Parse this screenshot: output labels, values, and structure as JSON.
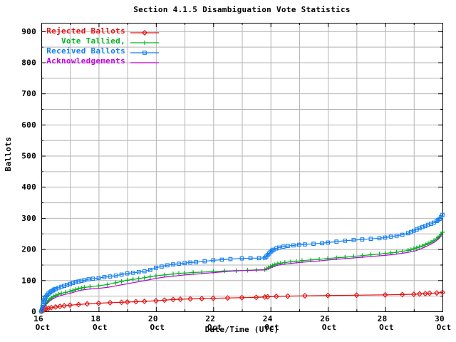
{
  "chart_data": {
    "type": "line",
    "title": "Section 4.1.5 Disambiguation Vote Statistics",
    "xlabel": "Date/Time (UTC)",
    "ylabel": "Ballots",
    "xlim": [
      16,
      30
    ],
    "ylim": [
      0,
      927
    ],
    "x_tick_month": "Oct",
    "legend_position": "top-left",
    "background": "#ffffff",
    "frame_color": "#000000",
    "grid": {
      "on": true,
      "x_step_days": 1,
      "y_step": 50,
      "color": "#b3b3b3"
    },
    "y_ticks": [
      {
        "value": 0,
        "label": "0"
      },
      {
        "value": 100,
        "label": "100"
      },
      {
        "value": 200,
        "label": "200"
      },
      {
        "value": 300,
        "label": "300"
      },
      {
        "value": 400,
        "label": "400"
      },
      {
        "value": 500,
        "label": "500"
      },
      {
        "value": 600,
        "label": "600"
      },
      {
        "value": 700,
        "label": "700"
      },
      {
        "value": 800,
        "label": "800"
      },
      {
        "value": 900,
        "label": "900"
      }
    ],
    "x_ticks": [
      {
        "value": 16,
        "day": "16",
        "month": "Oct"
      },
      {
        "value": 18,
        "day": "18",
        "month": "Oct"
      },
      {
        "value": 20,
        "day": "20",
        "month": "Oct"
      },
      {
        "value": 22,
        "day": "22",
        "month": "Oct"
      },
      {
        "value": 24,
        "day": "24",
        "month": "Oct"
      },
      {
        "value": 26,
        "day": "26",
        "month": "Oct"
      },
      {
        "value": 28,
        "day": "28",
        "month": "Oct"
      },
      {
        "value": 30,
        "day": "30",
        "month": "Oct"
      }
    ],
    "series": [
      {
        "name": "Rejected Ballots",
        "color": "#e60f0f",
        "marker": "diamond",
        "points": [
          [
            16.0,
            0
          ],
          [
            16.05,
            2
          ],
          [
            16.1,
            5
          ],
          [
            16.17,
            8
          ],
          [
            16.25,
            10
          ],
          [
            16.35,
            12
          ],
          [
            16.5,
            14
          ],
          [
            16.65,
            16
          ],
          [
            16.8,
            18
          ],
          [
            17.0,
            20
          ],
          [
            17.3,
            22
          ],
          [
            17.6,
            24
          ],
          [
            18.0,
            26
          ],
          [
            18.4,
            28
          ],
          [
            18.8,
            29
          ],
          [
            19.0,
            30
          ],
          [
            19.3,
            31
          ],
          [
            19.6,
            32
          ],
          [
            20.0,
            34
          ],
          [
            20.3,
            36
          ],
          [
            20.6,
            38
          ],
          [
            20.85,
            39
          ],
          [
            21.2,
            40
          ],
          [
            21.6,
            41
          ],
          [
            22.0,
            42
          ],
          [
            22.5,
            43
          ],
          [
            23.0,
            44
          ],
          [
            23.5,
            45
          ],
          [
            23.8,
            46
          ],
          [
            23.9,
            47
          ],
          [
            24.2,
            48
          ],
          [
            24.6,
            49
          ],
          [
            25.2,
            50
          ],
          [
            26.0,
            51
          ],
          [
            27.0,
            52
          ],
          [
            28.0,
            53
          ],
          [
            28.6,
            54
          ],
          [
            29.0,
            55
          ],
          [
            29.2,
            56
          ],
          [
            29.4,
            57
          ],
          [
            29.55,
            58
          ],
          [
            29.8,
            59
          ],
          [
            30.0,
            61
          ]
        ]
      },
      {
        "name": "Vote Tallied,",
        "color": "#00b41e",
        "marker": "plus",
        "points": [
          [
            16.0,
            0
          ],
          [
            16.04,
            6
          ],
          [
            16.08,
            13
          ],
          [
            16.12,
            19
          ],
          [
            16.16,
            25
          ],
          [
            16.2,
            30
          ],
          [
            16.25,
            35
          ],
          [
            16.3,
            39
          ],
          [
            16.36,
            43
          ],
          [
            16.42,
            47
          ],
          [
            16.5,
            51
          ],
          [
            16.6,
            55
          ],
          [
            16.7,
            58
          ],
          [
            16.85,
            61
          ],
          [
            17.0,
            64
          ],
          [
            17.1,
            67
          ],
          [
            17.2,
            70
          ],
          [
            17.3,
            73
          ],
          [
            17.4,
            75
          ],
          [
            17.5,
            77
          ],
          [
            17.7,
            79
          ],
          [
            18.0,
            82
          ],
          [
            18.3,
            86
          ],
          [
            18.6,
            92
          ],
          [
            18.8,
            96
          ],
          [
            19.0,
            100
          ],
          [
            19.2,
            103
          ],
          [
            19.4,
            105
          ],
          [
            19.6,
            108
          ],
          [
            19.8,
            111
          ],
          [
            20.0,
            114
          ],
          [
            20.3,
            117
          ],
          [
            20.6,
            120
          ],
          [
            20.8,
            122
          ],
          [
            21.0,
            123
          ],
          [
            21.3,
            125
          ],
          [
            21.6,
            126
          ],
          [
            22.0,
            128
          ],
          [
            22.4,
            130
          ],
          [
            22.8,
            131
          ],
          [
            23.2,
            132
          ],
          [
            23.5,
            133
          ],
          [
            23.8,
            134
          ],
          [
            23.87,
            137
          ],
          [
            23.93,
            140
          ],
          [
            24.0,
            144
          ],
          [
            24.07,
            147
          ],
          [
            24.15,
            150
          ],
          [
            24.25,
            153
          ],
          [
            24.35,
            155
          ],
          [
            24.5,
            157
          ],
          [
            24.7,
            159
          ],
          [
            24.9,
            161
          ],
          [
            25.1,
            163
          ],
          [
            25.4,
            165
          ],
          [
            25.7,
            167
          ],
          [
            26.0,
            170
          ],
          [
            26.3,
            172
          ],
          [
            26.6,
            174
          ],
          [
            26.9,
            177
          ],
          [
            27.2,
            179
          ],
          [
            27.5,
            182
          ],
          [
            27.8,
            184
          ],
          [
            28.0,
            186
          ],
          [
            28.2,
            188
          ],
          [
            28.4,
            190
          ],
          [
            28.6,
            193
          ],
          [
            28.8,
            196
          ],
          [
            28.9,
            198
          ],
          [
            29.0,
            201
          ],
          [
            29.1,
            204
          ],
          [
            29.2,
            207
          ],
          [
            29.3,
            210
          ],
          [
            29.4,
            214
          ],
          [
            29.5,
            218
          ],
          [
            29.6,
            222
          ],
          [
            29.7,
            227
          ],
          [
            29.8,
            233
          ],
          [
            29.85,
            237
          ],
          [
            29.9,
            241
          ],
          [
            29.95,
            247
          ],
          [
            30.0,
            254
          ]
        ]
      },
      {
        "name": "Received Ballots",
        "color": "#107df0",
        "marker": "square",
        "points": [
          [
            16.0,
            0
          ],
          [
            16.02,
            6
          ],
          [
            16.04,
            14
          ],
          [
            16.06,
            22
          ],
          [
            16.08,
            30
          ],
          [
            16.1,
            36
          ],
          [
            16.13,
            42
          ],
          [
            16.16,
            47
          ],
          [
            16.2,
            52
          ],
          [
            16.25,
            57
          ],
          [
            16.3,
            61
          ],
          [
            16.35,
            64
          ],
          [
            16.4,
            67
          ],
          [
            16.45,
            70
          ],
          [
            16.5,
            72
          ],
          [
            16.6,
            76
          ],
          [
            16.7,
            79
          ],
          [
            16.8,
            82
          ],
          [
            16.9,
            85
          ],
          [
            17.0,
            88
          ],
          [
            17.1,
            91
          ],
          [
            17.2,
            94
          ],
          [
            17.3,
            96
          ],
          [
            17.4,
            98
          ],
          [
            17.5,
            100
          ],
          [
            17.65,
            103
          ],
          [
            17.8,
            105
          ],
          [
            18.0,
            107
          ],
          [
            18.2,
            110
          ],
          [
            18.4,
            112
          ],
          [
            18.6,
            115
          ],
          [
            18.8,
            118
          ],
          [
            19.0,
            122
          ],
          [
            19.2,
            124
          ],
          [
            19.4,
            126
          ],
          [
            19.6,
            129
          ],
          [
            19.8,
            133
          ],
          [
            20.0,
            140
          ],
          [
            20.2,
            144
          ],
          [
            20.4,
            148
          ],
          [
            20.6,
            151
          ],
          [
            20.8,
            153
          ],
          [
            21.0,
            155
          ],
          [
            21.2,
            157
          ],
          [
            21.4,
            158
          ],
          [
            21.7,
            161
          ],
          [
            22.0,
            164
          ],
          [
            22.3,
            166
          ],
          [
            22.6,
            168
          ],
          [
            23.0,
            170
          ],
          [
            23.3,
            171
          ],
          [
            23.6,
            171
          ],
          [
            23.8,
            172
          ],
          [
            23.85,
            176
          ],
          [
            23.9,
            181
          ],
          [
            23.95,
            186
          ],
          [
            24.0,
            191
          ],
          [
            24.05,
            195
          ],
          [
            24.1,
            198
          ],
          [
            24.2,
            202
          ],
          [
            24.3,
            205
          ],
          [
            24.45,
            208
          ],
          [
            24.6,
            210
          ],
          [
            24.8,
            212
          ],
          [
            25.0,
            214
          ],
          [
            25.2,
            215
          ],
          [
            25.5,
            217
          ],
          [
            25.8,
            219
          ],
          [
            26.0,
            221
          ],
          [
            26.3,
            224
          ],
          [
            26.6,
            227
          ],
          [
            26.9,
            229
          ],
          [
            27.2,
            231
          ],
          [
            27.5,
            233
          ],
          [
            27.8,
            235
          ],
          [
            28.0,
            237
          ],
          [
            28.2,
            240
          ],
          [
            28.4,
            243
          ],
          [
            28.6,
            246
          ],
          [
            28.8,
            251
          ],
          [
            28.9,
            255
          ],
          [
            29.0,
            259
          ],
          [
            29.1,
            263
          ],
          [
            29.2,
            267
          ],
          [
            29.3,
            271
          ],
          [
            29.4,
            274
          ],
          [
            29.5,
            278
          ],
          [
            29.6,
            281
          ],
          [
            29.7,
            285
          ],
          [
            29.8,
            290
          ],
          [
            29.85,
            293
          ],
          [
            29.9,
            297
          ],
          [
            29.95,
            303
          ],
          [
            30.0,
            310
          ]
        ]
      },
      {
        "name": "Acknowledgements",
        "color": "#bd00dd",
        "marker": "none",
        "points": [
          [
            16.0,
            0
          ],
          [
            16.05,
            7
          ],
          [
            16.1,
            14
          ],
          [
            16.15,
            20
          ],
          [
            16.2,
            26
          ],
          [
            16.3,
            34
          ],
          [
            16.4,
            40
          ],
          [
            16.5,
            45
          ],
          [
            16.65,
            50
          ],
          [
            16.8,
            54
          ],
          [
            17.0,
            58
          ],
          [
            17.15,
            62
          ],
          [
            17.3,
            66
          ],
          [
            17.45,
            69
          ],
          [
            17.6,
            71
          ],
          [
            18.0,
            74
          ],
          [
            18.3,
            77
          ],
          [
            18.6,
            82
          ],
          [
            18.9,
            87
          ],
          [
            19.2,
            92
          ],
          [
            19.5,
            97
          ],
          [
            19.8,
            102
          ],
          [
            20.0,
            106
          ],
          [
            20.3,
            110
          ],
          [
            20.6,
            113
          ],
          [
            21.0,
            117
          ],
          [
            21.4,
            120
          ],
          [
            21.8,
            123
          ],
          [
            22.2,
            126
          ],
          [
            22.6,
            129
          ],
          [
            23.0,
            131
          ],
          [
            23.4,
            132
          ],
          [
            23.8,
            133
          ],
          [
            23.9,
            136
          ],
          [
            24.0,
            140
          ],
          [
            24.1,
            144
          ],
          [
            24.25,
            148
          ],
          [
            24.4,
            151
          ],
          [
            24.6,
            153
          ],
          [
            24.8,
            155
          ],
          [
            25.1,
            158
          ],
          [
            25.4,
            160
          ],
          [
            25.7,
            162
          ],
          [
            26.0,
            165
          ],
          [
            26.4,
            168
          ],
          [
            26.8,
            171
          ],
          [
            27.2,
            174
          ],
          [
            27.6,
            177
          ],
          [
            28.0,
            180
          ],
          [
            28.4,
            184
          ],
          [
            28.7,
            188
          ],
          [
            29.0,
            193
          ],
          [
            29.2,
            199
          ],
          [
            29.4,
            207
          ],
          [
            29.6,
            216
          ],
          [
            29.75,
            224
          ],
          [
            29.85,
            232
          ],
          [
            29.92,
            240
          ],
          [
            30.0,
            250
          ]
        ]
      }
    ]
  }
}
